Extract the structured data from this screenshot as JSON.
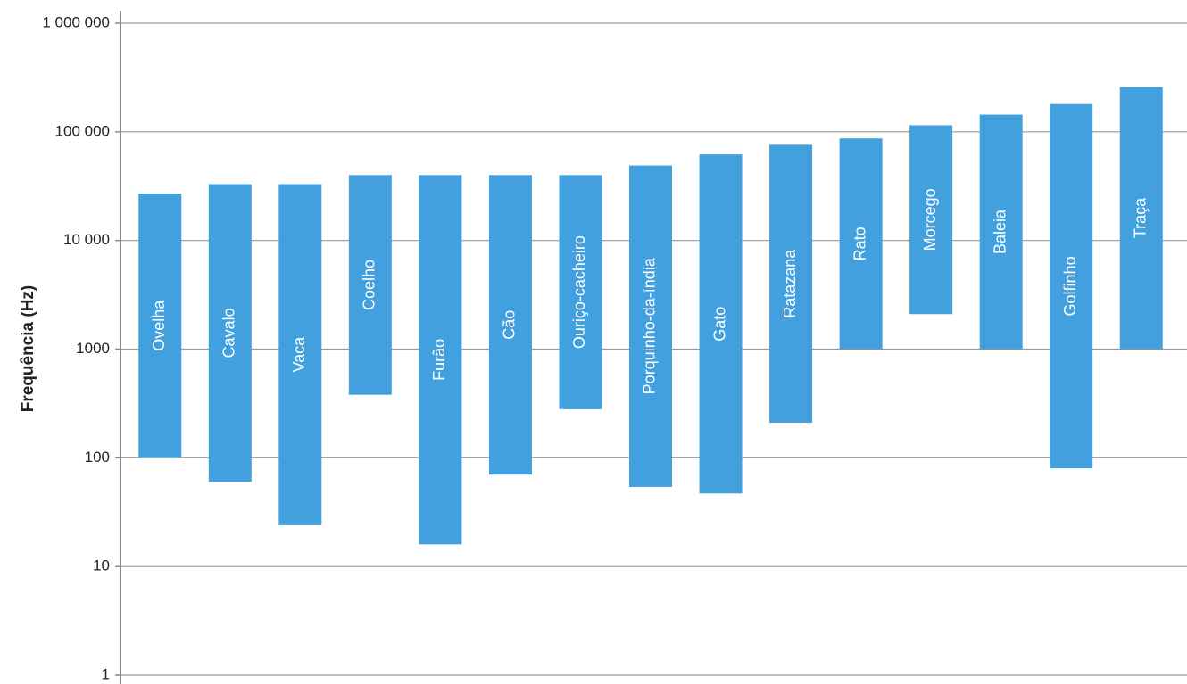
{
  "chart_data": {
    "type": "range-bar",
    "y_label": "Frequência (Hz)",
    "categories": [
      "Ovelha",
      "Cavalo",
      "Vaca",
      "Coelho",
      "Furão",
      "Cão",
      "Ouriço-cacheiro",
      "Porquinho-da-índia",
      "Gato",
      "Ratazana",
      "Rato",
      "Morcego",
      "Baleia",
      "Golfinho",
      "Traça"
    ],
    "low": [
      100,
      60,
      24,
      380,
      16,
      70,
      280,
      54,
      47,
      210,
      1000,
      2100,
      1000,
      80,
      1000
    ],
    "high": [
      27000,
      33000,
      33000,
      40000,
      40000,
      40000,
      40000,
      49000,
      62000,
      76000,
      87000,
      115000,
      144000,
      180000,
      259000
    ],
    "color": "#42a0de",
    "log_scale": true,
    "grid": true,
    "ylim": [
      1,
      1000000
    ],
    "yticks": [
      1,
      10,
      100,
      1000,
      {
        "value": 10000,
        "label": "10 000"
      },
      {
        "value": 100000,
        "label": "100 000"
      },
      {
        "value": 1000000,
        "label": "1 000 000"
      }
    ]
  }
}
